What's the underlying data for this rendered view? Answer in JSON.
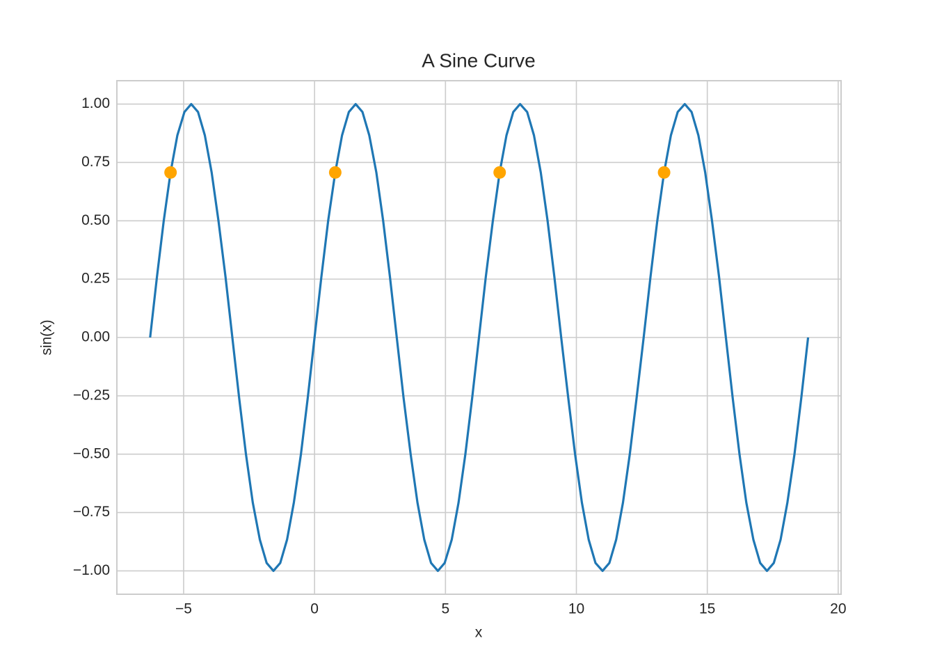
{
  "chart_data": {
    "type": "line",
    "title": "A Sine Curve",
    "x_label": "x",
    "y_label": "sin(x)",
    "xlim": [
      -7.55,
      20.11
    ],
    "ylim": [
      -1.1,
      1.1
    ],
    "xticks": [
      {
        "value": -5,
        "label": "−5"
      },
      0,
      5,
      10,
      15,
      20
    ],
    "yticks": [
      {
        "value": 1,
        "label": "1.00"
      },
      {
        "value": 0.75,
        "label": "0.75"
      },
      {
        "value": 0.5,
        "label": "0.50"
      },
      {
        "value": 0.25,
        "label": "0.25"
      },
      {
        "value": 0,
        "label": "0.00"
      },
      {
        "value": -0.25,
        "label": "−0.25"
      },
      {
        "value": -0.5,
        "label": "−0.50"
      },
      {
        "value": -0.75,
        "label": "−0.75"
      },
      {
        "value": -1,
        "label": "−1.00"
      }
    ],
    "grid": true,
    "series": [
      {
        "style": "line",
        "color": "#1f77b4",
        "x": [
          -6.28,
          -6.02,
          -5.76,
          -5.5,
          -5.24,
          -4.97,
          -4.71,
          -4.45,
          -4.19,
          -3.93,
          -3.67,
          -3.4,
          -3.14,
          -2.88,
          -2.62,
          -2.36,
          -2.09,
          -1.83,
          -1.57,
          -1.31,
          -1.05,
          -0.79,
          -0.52,
          -0.26,
          0,
          0.26,
          0.52,
          0.79,
          1.05,
          1.31,
          1.57,
          1.83,
          2.09,
          2.36,
          2.62,
          2.88,
          3.14,
          3.4,
          3.67,
          3.93,
          4.19,
          4.45,
          4.71,
          4.97,
          5.24,
          5.5,
          5.76,
          6.02,
          6.28,
          6.54,
          6.81,
          7.07,
          7.33,
          7.59,
          7.85,
          8.12,
          8.38,
          8.64,
          8.9,
          9.16,
          9.42,
          9.69,
          9.95,
          10.21,
          10.47,
          10.73,
          11.0,
          11.26,
          11.52,
          11.78,
          12.04,
          12.3,
          12.57,
          12.83,
          13.09,
          13.35,
          13.61,
          13.87,
          14.14,
          14.4,
          14.66,
          14.92,
          15.18,
          15.45,
          15.71,
          15.97,
          16.23,
          16.49,
          16.76,
          17.02,
          17.28,
          17.54,
          17.8,
          18.06,
          18.33,
          18.59,
          18.85
        ],
        "values": [
          0,
          0.259,
          0.5,
          0.707,
          0.866,
          0.966,
          1,
          0.966,
          0.866,
          0.707,
          0.5,
          0.259,
          0,
          -0.259,
          -0.5,
          -0.707,
          -0.866,
          -0.966,
          -1,
          -0.966,
          -0.866,
          -0.707,
          -0.5,
          -0.259,
          0,
          0.259,
          0.5,
          0.707,
          0.866,
          0.966,
          1,
          0.966,
          0.866,
          0.707,
          0.5,
          0.259,
          0,
          -0.259,
          -0.5,
          -0.707,
          -0.866,
          -0.966,
          -1,
          -0.966,
          -0.866,
          -0.707,
          -0.5,
          -0.259,
          0,
          0.259,
          0.5,
          0.707,
          0.866,
          0.966,
          1,
          0.966,
          0.866,
          0.707,
          0.5,
          0.259,
          0,
          -0.259,
          -0.5,
          -0.707,
          -0.866,
          -0.966,
          -1,
          -0.966,
          -0.866,
          -0.707,
          -0.5,
          -0.259,
          0,
          0.259,
          0.5,
          0.707,
          0.866,
          0.966,
          1,
          0.966,
          0.866,
          0.707,
          0.5,
          0.259,
          0,
          -0.259,
          -0.5,
          -0.707,
          -0.866,
          -0.966,
          -1,
          -0.966,
          -0.866,
          -0.707,
          -0.5,
          -0.259,
          0
        ]
      },
      {
        "style": "marker",
        "color": "#ffa500",
        "x": [
          -5.5,
          0.79,
          7.07,
          13.35
        ],
        "values": [
          0.707,
          0.707,
          0.707,
          0.707
        ]
      }
    ]
  }
}
